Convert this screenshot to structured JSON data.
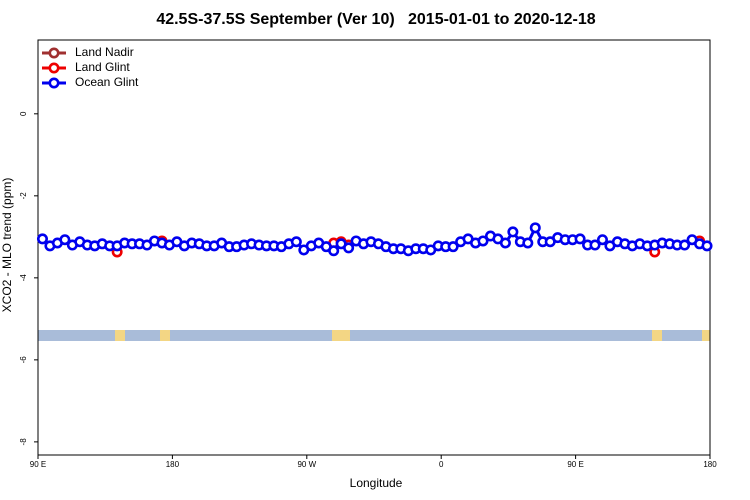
{
  "chart_data": {
    "type": "line",
    "title": "42.5S-37.5S September (Ver 10)   2015-01-01 to 2020-12-18",
    "x_label": "Longitude",
    "y_label": "XCO2 - MLO trend (ppm)",
    "xlim": [
      90,
      540
    ],
    "ylim": [
      -8.32,
      1.8
    ],
    "xticks": [
      {
        "value": 90,
        "label": "90 E"
      },
      {
        "value": 180,
        "label": "180"
      },
      {
        "value": 270,
        "label": "90 W"
      },
      {
        "value": 360,
        "label": "0"
      },
      {
        "value": 450,
        "label": "90 E"
      },
      {
        "value": 540,
        "label": "180"
      }
    ],
    "yticks": [
      -8,
      -6,
      -4,
      -2,
      0
    ],
    "legend": "top-left",
    "series": [
      {
        "name": "Land Nadir",
        "color": "#a03030",
        "x": [],
        "values": []
      },
      {
        "name": "Land Glint",
        "color": "#ee0000",
        "x": [
          143,
          173,
          288,
          293,
          298,
          503,
          533
        ],
        "values": [
          -3.37,
          -3.1,
          -3.15,
          -3.12,
          -3.2,
          -3.37,
          -3.1
        ]
      },
      {
        "name": "Ocean Glint",
        "color": "#0000ee",
        "x": [
          93,
          98,
          103,
          108,
          113,
          118,
          123,
          128,
          133,
          138,
          143,
          148,
          153,
          158,
          163,
          168,
          173,
          178,
          183,
          188,
          193,
          198,
          203,
          208,
          213,
          218,
          223,
          228,
          233,
          238,
          243,
          248,
          253,
          258,
          263,
          268,
          273,
          278,
          283,
          288,
          293,
          298,
          303,
          308,
          313,
          318,
          323,
          328,
          333,
          338,
          343,
          348,
          353,
          358,
          363,
          368,
          373,
          378,
          383,
          388,
          393,
          398,
          403,
          408,
          413,
          418,
          423,
          428,
          433,
          438,
          443,
          448,
          453,
          458,
          463,
          468,
          473,
          478,
          483,
          488,
          493,
          498,
          503,
          508,
          513,
          518,
          523,
          528,
          533,
          538
        ],
        "values": [
          -3.05,
          -3.22,
          -3.15,
          -3.07,
          -3.2,
          -3.12,
          -3.2,
          -3.22,
          -3.17,
          -3.22,
          -3.22,
          -3.15,
          -3.17,
          -3.17,
          -3.2,
          -3.1,
          -3.15,
          -3.2,
          -3.12,
          -3.22,
          -3.15,
          -3.17,
          -3.22,
          -3.22,
          -3.15,
          -3.24,
          -3.24,
          -3.2,
          -3.17,
          -3.2,
          -3.22,
          -3.22,
          -3.24,
          -3.17,
          -3.12,
          -3.32,
          -3.22,
          -3.15,
          -3.24,
          -3.34,
          -3.17,
          -3.27,
          -3.1,
          -3.17,
          -3.12,
          -3.17,
          -3.24,
          -3.29,
          -3.29,
          -3.34,
          -3.29,
          -3.29,
          -3.32,
          -3.22,
          -3.24,
          -3.24,
          -3.12,
          -3.05,
          -3.15,
          -3.1,
          -2.98,
          -3.05,
          -3.15,
          -2.88,
          -3.12,
          -3.15,
          -2.78,
          -3.12,
          -3.12,
          -3.02,
          -3.07,
          -3.07,
          -3.05,
          -3.2,
          -3.2,
          -3.07,
          -3.22,
          -3.12,
          -3.17,
          -3.22,
          -3.17,
          -3.22,
          -3.2,
          -3.15,
          -3.17,
          -3.2,
          -3.2,
          -3.07,
          -3.17,
          -3.22
        ]
      }
    ]
  }
}
